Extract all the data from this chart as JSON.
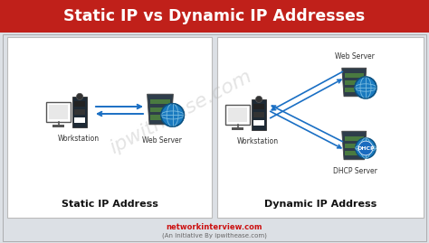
{
  "title": "Static IP vs Dynamic IP Addresses",
  "title_bg": "#c0201a",
  "title_color": "#ffffff",
  "bg_color": "#dce0e5",
  "panel_bg": "#ffffff",
  "left_label": "Static IP Address",
  "right_label": "Dynamic IP Address",
  "footer1": "networkinterview.com",
  "footer2": "(An Initiative By ipwithease.com)",
  "footer1_color": "#cc1111",
  "footer2_color": "#666666",
  "workstation_label": "Workstation",
  "web_server_label": "Web Server",
  "dhcp_server_label": "DHCP Server",
  "arrow_color": "#1a6fc4",
  "watermark": "ipwithease.com",
  "watermark_color": "#bbbbbb",
  "panel_edge": "#bbbbbb",
  "tower_dark": "#1e2a35",
  "tower_mid": "#2e3d4a",
  "slot_green": "#4a7a40",
  "globe_blue": "#1a7abf",
  "globe_line": "#7abce0"
}
